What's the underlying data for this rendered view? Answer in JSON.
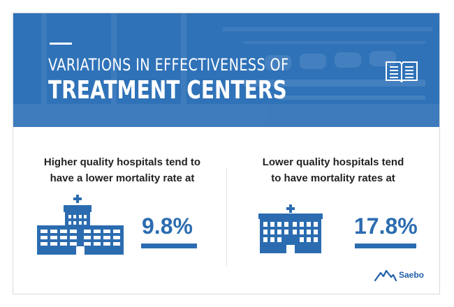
{
  "header": {
    "title_line1": "VARIATIONS IN EFFECTIVENESS OF",
    "title_line2": "TREATMENT CENTERS",
    "icon": "book-icon"
  },
  "left": {
    "caption_line1": "Higher quality hospitals tend to",
    "caption_line2": "have a lower mortality rate at",
    "value": "9.8%",
    "icon": "hospital-icon"
  },
  "right": {
    "caption_line1": "Lower quality hospitals tend",
    "caption_line2": "to have mortality rates at",
    "value": "17.8%",
    "icon": "hospital-icon"
  },
  "brand": {
    "name": "Saebo",
    "icon": "mountain-logo-icon"
  },
  "colors": {
    "banner": "#2f72b8",
    "accent": "#2b6cb0",
    "text": "#222222"
  }
}
